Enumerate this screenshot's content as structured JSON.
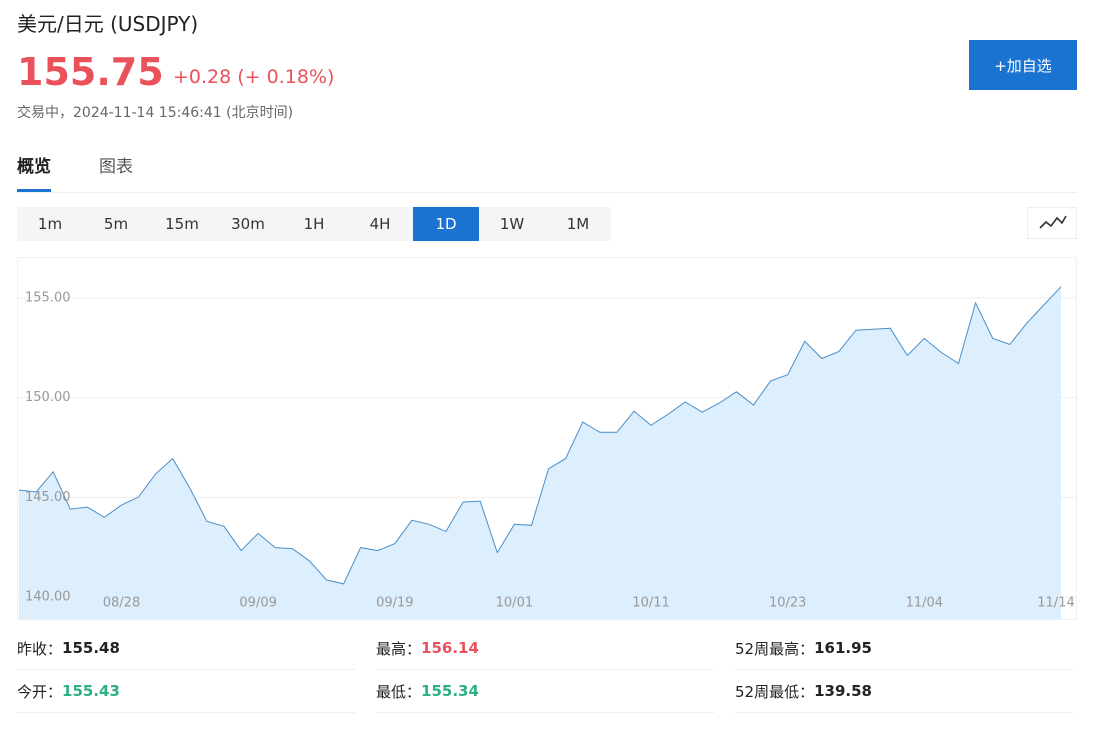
{
  "header": {
    "title": "美元/日元  (USDJPY)",
    "price": "155.75",
    "change": "+0.28 (+ 0.18%)",
    "status": "交易中，2024-11-14 15:46:41 (北京时间)",
    "button": "+加自选"
  },
  "tabs": [
    "概览",
    "图表"
  ],
  "active_tab": 0,
  "timeframes": [
    "1m",
    "5m",
    "15m",
    "30m",
    "1H",
    "4H",
    "1D",
    "1W",
    "1M"
  ],
  "active_timeframe": 6,
  "chart_data": {
    "type": "area",
    "color": "#4a8fc9",
    "fill": "#ddeefc",
    "categories": [
      null,
      null,
      null,
      null,
      null,
      null,
      "08/28",
      null,
      null,
      null,
      null,
      null,
      null,
      null,
      "09/09",
      null,
      null,
      null,
      null,
      null,
      null,
      null,
      "09/19",
      null,
      null,
      null,
      null,
      null,
      null,
      "10/01",
      null,
      null,
      null,
      null,
      null,
      null,
      null,
      "10/11",
      null,
      null,
      null,
      null,
      null,
      null,
      null,
      "10/23",
      null,
      null,
      null,
      null,
      null,
      null,
      null,
      "11/04",
      null,
      null,
      null,
      null,
      null,
      null,
      null,
      "11/14"
    ],
    "values": [
      145.37,
      145.27,
      146.28,
      144.41,
      144.51,
      144.0,
      144.61,
      145.02,
      146.18,
      146.94,
      145.47,
      143.8,
      143.55,
      142.33,
      143.19,
      142.48,
      142.43,
      141.82,
      140.86,
      140.66,
      142.48,
      142.33,
      142.68,
      143.85,
      143.65,
      143.29,
      144.76,
      144.81,
      142.23,
      143.65,
      143.6,
      146.43,
      146.94,
      148.77,
      148.26,
      148.26,
      149.32,
      148.61,
      149.17,
      149.78,
      149.27,
      149.73,
      150.29,
      149.63,
      150.84,
      151.15,
      152.82,
      151.96,
      152.31,
      153.38,
      153.43,
      153.48,
      152.11,
      152.97,
      152.26,
      151.71,
      154.75,
      152.97,
      152.67,
      153.73,
      154.65,
      155.56
    ],
    "ylim": [
      138.8,
      157
    ],
    "yticks": [
      {
        "value": 140,
        "label": "140.00"
      },
      {
        "value": 145,
        "label": "145.00"
      },
      {
        "value": 150,
        "label": "150.00"
      },
      {
        "value": 155,
        "label": "155.00"
      }
    ],
    "grid": true
  },
  "stats": [
    {
      "label": "昨收：",
      "value": "155.48",
      "color": "#222222"
    },
    {
      "label": "最高：",
      "value": "156.14",
      "color": "#e9525b"
    },
    {
      "label": "52周最高：",
      "value": "161.95",
      "color": "#222222"
    },
    {
      "label": "今开：",
      "value": "155.43",
      "color": "#2bb07f"
    },
    {
      "label": "最低：",
      "value": "155.34",
      "color": "#2bb07f"
    },
    {
      "label": "52周最低：",
      "value": "139.58",
      "color": "#222222"
    }
  ]
}
